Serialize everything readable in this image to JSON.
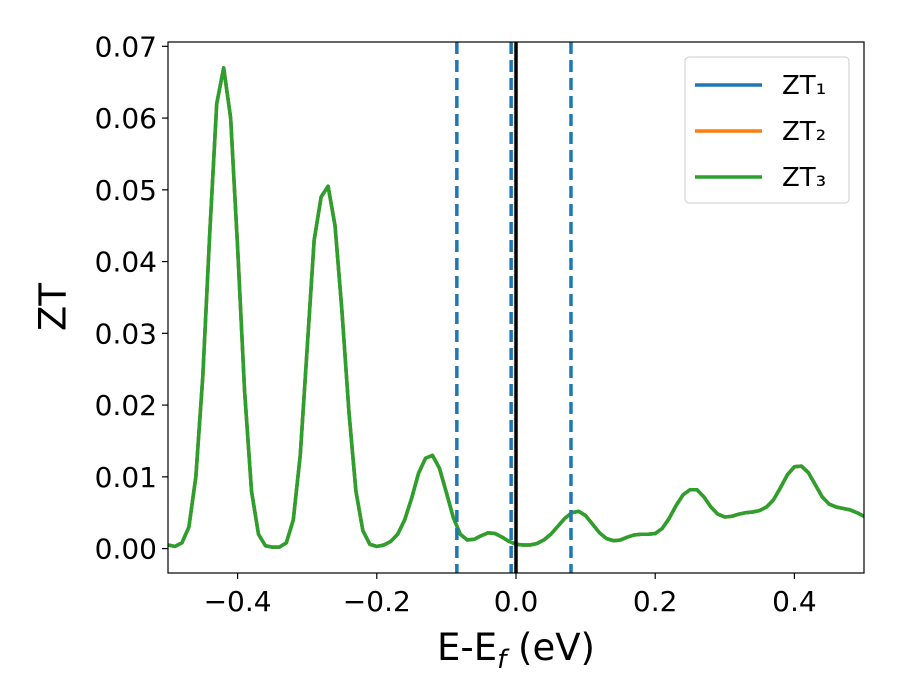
{
  "chart_data": {
    "type": "line",
    "xlabel": [
      "E-E",
      "f",
      " (eV)"
    ],
    "ylabel": "ZT",
    "xlim": [
      -0.5,
      0.5
    ],
    "ylim": [
      -0.0034,
      0.0706
    ],
    "xticks": [
      {
        "value": -0.4,
        "label": "−0.4"
      },
      {
        "value": -0.2,
        "label": "−0.2"
      },
      {
        "value": 0,
        "label": "0.0"
      },
      0.2,
      0.4
    ],
    "yticks": [
      {
        "value": 0,
        "label": "0.00"
      },
      0.01,
      0.02,
      0.03,
      0.04,
      0.05,
      0.06,
      0.07
    ],
    "legend": "upper right",
    "vlines": [
      {
        "x": -0.085,
        "color": "#1f77b4",
        "style": "dashed"
      },
      {
        "x": -0.007,
        "color": "#1f77b4",
        "style": "dashed"
      },
      {
        "x": 0.079,
        "color": "#1f77b4",
        "style": "dashed"
      },
      {
        "x": 0,
        "color": "#000000",
        "style": "solid"
      }
    ],
    "x": [
      -0.5,
      -0.49,
      -0.48,
      -0.47,
      -0.46,
      -0.45,
      -0.44,
      -0.43,
      -0.42,
      -0.41,
      -0.4,
      -0.39,
      -0.38,
      -0.37,
      -0.36,
      -0.35,
      -0.34,
      -0.33,
      -0.32,
      -0.31,
      -0.3,
      -0.29,
      -0.28,
      -0.27,
      -0.26,
      -0.25,
      -0.24,
      -0.23,
      -0.22,
      -0.21,
      -0.2,
      -0.19,
      -0.18,
      -0.17,
      -0.16,
      -0.15,
      -0.14,
      -0.13,
      -0.12,
      -0.11,
      -0.1,
      -0.09,
      -0.08,
      -0.07,
      -0.06,
      -0.05,
      -0.04,
      -0.03,
      -0.02,
      -0.01,
      0,
      0.01,
      0.02,
      0.03,
      0.04,
      0.05,
      0.06,
      0.07,
      0.08,
      0.09,
      0.1,
      0.11,
      0.12,
      0.13,
      0.14,
      0.15,
      0.16,
      0.17,
      0.18,
      0.19,
      0.2,
      0.21,
      0.22,
      0.23,
      0.24,
      0.25,
      0.26,
      0.27,
      0.28,
      0.29,
      0.3,
      0.31,
      0.32,
      0.33,
      0.34,
      0.35,
      0.36,
      0.37,
      0.38,
      0.39,
      0.4,
      0.41,
      0.42,
      0.43,
      0.44,
      0.45,
      0.46,
      0.47,
      0.48,
      0.49,
      0.5
    ],
    "series": [
      {
        "name": "ZT₁",
        "color": "#1f77b4",
        "values": [
          0.0005,
          0.0003,
          0.0008,
          0.003,
          0.01,
          0.024,
          0.044,
          0.062,
          0.067,
          0.06,
          0.042,
          0.022,
          0.008,
          0.002,
          0.0004,
          0.0002,
          0.0002,
          0.0008,
          0.004,
          0.013,
          0.028,
          0.043,
          0.049,
          0.0505,
          0.045,
          0.033,
          0.019,
          0.008,
          0.0025,
          0.0006,
          0.0003,
          0.0005,
          0.001,
          0.002,
          0.004,
          0.007,
          0.0105,
          0.0126,
          0.013,
          0.0112,
          0.0078,
          0.0043,
          0.002,
          0.0012,
          0.0013,
          0.0018,
          0.0022,
          0.0021,
          0.0016,
          0.001,
          0.0006,
          0.0005,
          0.0005,
          0.0007,
          0.0012,
          0.002,
          0.0031,
          0.0042,
          0.005,
          0.0052,
          0.0046,
          0.0034,
          0.0022,
          0.0014,
          0.0011,
          0.0012,
          0.0016,
          0.0019,
          0.002,
          0.002,
          0.0021,
          0.0028,
          0.0042,
          0.006,
          0.0075,
          0.0082,
          0.0082,
          0.0072,
          0.0058,
          0.0048,
          0.0044,
          0.0045,
          0.0048,
          0.005,
          0.0051,
          0.0053,
          0.0058,
          0.0068,
          0.0085,
          0.0103,
          0.0114,
          0.0115,
          0.0106,
          0.0089,
          0.0072,
          0.0062,
          0.0058,
          0.0056,
          0.0054,
          0.005,
          0.0045
        ]
      },
      {
        "name": "ZT₂",
        "color": "#ff7f0e",
        "values": [
          0.0005,
          0.0003,
          0.0008,
          0.003,
          0.01,
          0.024,
          0.044,
          0.062,
          0.067,
          0.06,
          0.042,
          0.022,
          0.008,
          0.002,
          0.0004,
          0.0002,
          0.0002,
          0.0008,
          0.004,
          0.013,
          0.028,
          0.043,
          0.049,
          0.0505,
          0.045,
          0.033,
          0.019,
          0.008,
          0.0025,
          0.0006,
          0.0003,
          0.0005,
          0.001,
          0.002,
          0.004,
          0.007,
          0.0105,
          0.0126,
          0.013,
          0.0112,
          0.0078,
          0.0043,
          0.002,
          0.0012,
          0.0013,
          0.0018,
          0.0022,
          0.0021,
          0.0016,
          0.001,
          0.0006,
          0.0005,
          0.0005,
          0.0007,
          0.0012,
          0.002,
          0.0031,
          0.0042,
          0.005,
          0.0052,
          0.0046,
          0.0034,
          0.0022,
          0.0014,
          0.0011,
          0.0012,
          0.0016,
          0.0019,
          0.002,
          0.002,
          0.0021,
          0.0028,
          0.0042,
          0.006,
          0.0075,
          0.0082,
          0.0082,
          0.0072,
          0.0058,
          0.0048,
          0.0044,
          0.0045,
          0.0048,
          0.005,
          0.0051,
          0.0053,
          0.0058,
          0.0068,
          0.0085,
          0.0103,
          0.0114,
          0.0115,
          0.0106,
          0.0089,
          0.0072,
          0.0062,
          0.0058,
          0.0056,
          0.0054,
          0.005,
          0.0045
        ]
      },
      {
        "name": "ZT₃",
        "color": "#2ca02c",
        "values": [
          0.0005,
          0.0003,
          0.0008,
          0.003,
          0.01,
          0.024,
          0.044,
          0.062,
          0.067,
          0.06,
          0.042,
          0.022,
          0.008,
          0.002,
          0.0004,
          0.0002,
          0.0002,
          0.0008,
          0.004,
          0.013,
          0.028,
          0.043,
          0.049,
          0.0505,
          0.045,
          0.033,
          0.019,
          0.008,
          0.0025,
          0.0006,
          0.0003,
          0.0005,
          0.001,
          0.002,
          0.004,
          0.007,
          0.0105,
          0.0126,
          0.013,
          0.0112,
          0.0078,
          0.0043,
          0.002,
          0.0012,
          0.0013,
          0.0018,
          0.0022,
          0.0021,
          0.0016,
          0.001,
          0.0006,
          0.0005,
          0.0005,
          0.0007,
          0.0012,
          0.002,
          0.0031,
          0.0042,
          0.005,
          0.0052,
          0.0046,
          0.0034,
          0.0022,
          0.0014,
          0.0011,
          0.0012,
          0.0016,
          0.0019,
          0.002,
          0.002,
          0.0021,
          0.0028,
          0.0042,
          0.006,
          0.0075,
          0.0082,
          0.0082,
          0.0072,
          0.0058,
          0.0048,
          0.0044,
          0.0045,
          0.0048,
          0.005,
          0.0051,
          0.0053,
          0.0058,
          0.0068,
          0.0085,
          0.0103,
          0.0114,
          0.0115,
          0.0106,
          0.0089,
          0.0072,
          0.0062,
          0.0058,
          0.0056,
          0.0054,
          0.005,
          0.0045
        ]
      }
    ]
  }
}
